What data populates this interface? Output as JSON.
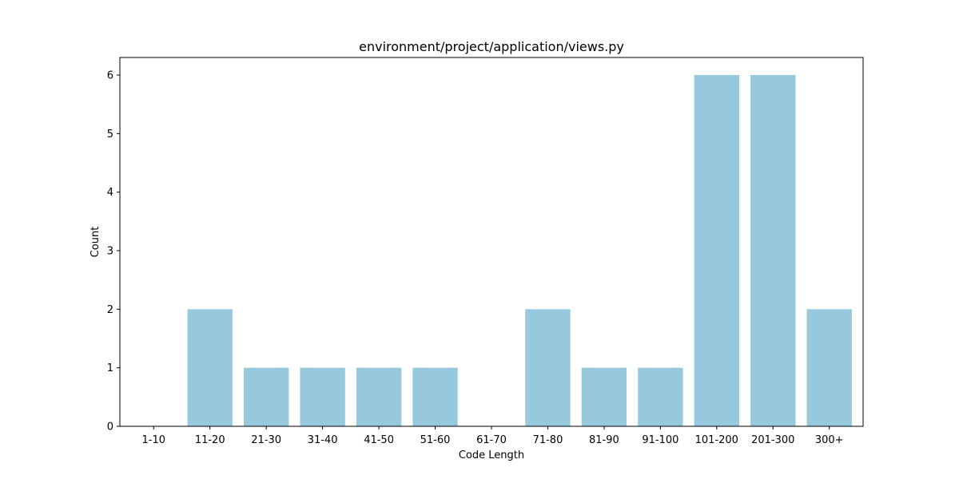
{
  "chart_data": {
    "type": "bar",
    "title": "environment/project/application/views.py",
    "xlabel": "Code Length",
    "ylabel": "Count",
    "categories": [
      "1-10",
      "11-20",
      "21-30",
      "31-40",
      "41-50",
      "51-60",
      "61-70",
      "71-80",
      "81-90",
      "91-100",
      "101-200",
      "201-300",
      "300+"
    ],
    "values": [
      0,
      2,
      1,
      1,
      1,
      1,
      0,
      2,
      1,
      1,
      6,
      6,
      2
    ],
    "ylim": [
      0,
      6.3
    ],
    "yticks": [
      0,
      1,
      2,
      3,
      4,
      5,
      6
    ],
    "ytick_labels": [
      "0",
      "1",
      "2",
      "3",
      "4",
      "5",
      "6"
    ],
    "bar_color": "#96c9de",
    "grid": false
  }
}
